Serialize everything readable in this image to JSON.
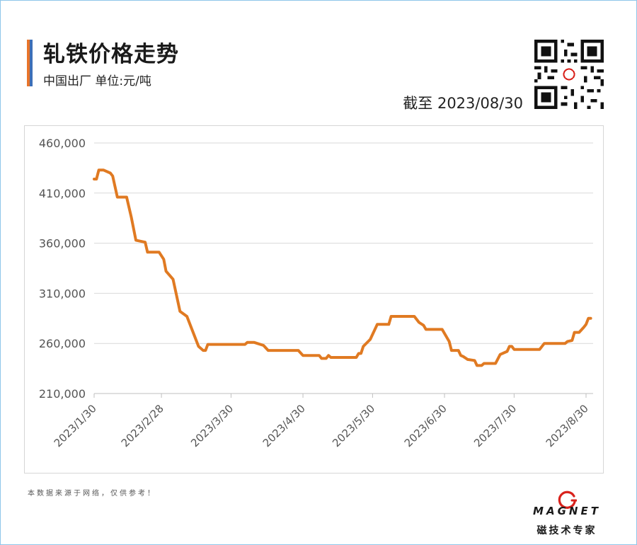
{
  "header": {
    "title": "轧铁价格走势",
    "subtitle": "中国出厂  单位:元/吨",
    "as_of": "截至 2023/08/30"
  },
  "footer": {
    "note": "本数据来源于网络，仅供参考！",
    "logo_word": "MAGNET",
    "logo_sub": "磁技术专家"
  },
  "colors": {
    "accent_orange": "#e8742a",
    "accent_blue": "#3d6fb8",
    "line": "#e07a22",
    "grid": "#d9d9d9",
    "logo_red": "#d9221c"
  },
  "chart_data": {
    "type": "line",
    "title": "轧铁价格走势",
    "xlabel": "",
    "ylabel": "",
    "ylim": [
      210000,
      460000
    ],
    "yticks": [
      210000,
      260000,
      310000,
      360000,
      410000,
      460000
    ],
    "ytick_labels": [
      "210,000",
      "260,000",
      "310,000",
      "360,000",
      "410,000",
      "460,000"
    ],
    "xticks": [
      "2023/1/30",
      "2023/2/28",
      "2023/3/30",
      "2023/4/30",
      "2023/5/30",
      "2023/6/30",
      "2023/7/30",
      "2023/8/30"
    ],
    "grid": true,
    "legend": "none",
    "series": [
      {
        "points": [
          [
            "2023/1/30",
            424000
          ],
          [
            "2023/1/31",
            424000
          ],
          [
            "2023/2/1",
            433000
          ],
          [
            "2023/2/3",
            433000
          ],
          [
            "2023/2/6",
            430000
          ],
          [
            "2023/2/7",
            427000
          ],
          [
            "2023/2/9",
            406000
          ],
          [
            "2023/2/13",
            406000
          ],
          [
            "2023/2/15",
            386000
          ],
          [
            "2023/2/17",
            363000
          ],
          [
            "2023/2/21",
            361000
          ],
          [
            "2023/2/22",
            351000
          ],
          [
            "2023/2/27",
            351000
          ],
          [
            "2023/3/1",
            344000
          ],
          [
            "2023/3/2",
            332000
          ],
          [
            "2023/3/5",
            324000
          ],
          [
            "2023/3/8",
            292000
          ],
          [
            "2023/3/11",
            287000
          ],
          [
            "2023/3/16",
            257000
          ],
          [
            "2023/3/18",
            253000
          ],
          [
            "2023/3/19",
            253000
          ],
          [
            "2023/3/20",
            259000
          ],
          [
            "2023/4/5",
            259000
          ],
          [
            "2023/4/6",
            261000
          ],
          [
            "2023/4/9",
            261000
          ],
          [
            "2023/4/13",
            258000
          ],
          [
            "2023/4/15",
            253000
          ],
          [
            "2023/4/28",
            253000
          ],
          [
            "2023/4/30",
            248000
          ],
          [
            "2023/5/7",
            248000
          ],
          [
            "2023/5/8",
            245000
          ],
          [
            "2023/5/10",
            245000
          ],
          [
            "2023/5/11",
            248000
          ],
          [
            "2023/5/12",
            246000
          ],
          [
            "2023/5/23",
            246000
          ],
          [
            "2023/5/24",
            250000
          ],
          [
            "2023/5/25",
            250000
          ],
          [
            "2023/5/26",
            257000
          ],
          [
            "2023/5/29",
            264000
          ],
          [
            "2023/6/1",
            279000
          ],
          [
            "2023/6/6",
            279000
          ],
          [
            "2023/6/7",
            287000
          ],
          [
            "2023/6/17",
            287000
          ],
          [
            "2023/6/19",
            281000
          ],
          [
            "2023/6/21",
            278000
          ],
          [
            "2023/6/22",
            274000
          ],
          [
            "2023/6/29",
            274000
          ],
          [
            "2023/7/2",
            262000
          ],
          [
            "2023/7/3",
            253000
          ],
          [
            "2023/7/6",
            253000
          ],
          [
            "2023/7/7",
            248000
          ],
          [
            "2023/7/8",
            247000
          ],
          [
            "2023/7/10",
            244000
          ],
          [
            "2023/7/13",
            243000
          ],
          [
            "2023/7/14",
            238000
          ],
          [
            "2023/7/16",
            238000
          ],
          [
            "2023/7/17",
            240000
          ],
          [
            "2023/7/22",
            240000
          ],
          [
            "2023/7/24",
            249000
          ],
          [
            "2023/7/27",
            252000
          ],
          [
            "2023/7/28",
            257000
          ],
          [
            "2023/7/29",
            257000
          ],
          [
            "2023/7/30",
            254000
          ],
          [
            "2023/8/10",
            254000
          ],
          [
            "2023/8/12",
            260000
          ],
          [
            "2023/8/21",
            260000
          ],
          [
            "2023/8/22",
            262000
          ],
          [
            "2023/8/24",
            263000
          ],
          [
            "2023/8/25",
            271000
          ],
          [
            "2023/8/27",
            271000
          ],
          [
            "2023/8/29",
            276000
          ],
          [
            "2023/8/30",
            279000
          ],
          [
            "2023/8/31",
            285000
          ],
          [
            "2023/9/1",
            285000
          ]
        ]
      }
    ]
  }
}
